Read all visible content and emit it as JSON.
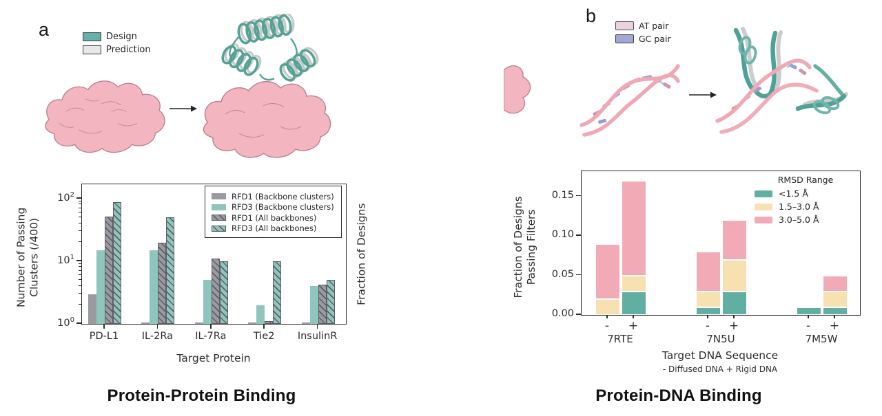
{
  "panel_a": {
    "label": "a",
    "top_legend": {
      "design": "Design",
      "prediction": "Prediction"
    },
    "caption": "Protein-Protein Binding",
    "colors": {
      "design_swatch": "#63b1a8",
      "prediction_swatch": "#e8e8e8"
    }
  },
  "panel_b": {
    "label": "b",
    "top_legend": {
      "at_pair": "AT pair",
      "gc_pair": "GC pair"
    },
    "caption": "Protein-DNA Binding",
    "colors": {
      "at_swatch": "#ecd2dc",
      "gc_swatch": "#a3a7d1"
    }
  },
  "chart_data": [
    {
      "id": "protein_protein_chart",
      "type": "bar",
      "yscale": "log",
      "xlabel": "Target Protein",
      "ylabel": "Number of Passing Clusters (/400)",
      "ylabel_lines": [
        "Number of Passing",
        "Clusters (/400)"
      ],
      "ylabel_right": "Fraction of Designs",
      "categories": [
        "PD-L1",
        "IL-2Ra",
        "IL-7Ra",
        "Tie2",
        "InsulinR"
      ],
      "yticks_exp": [
        0,
        1,
        2
      ],
      "ylim": [
        1,
        170
      ],
      "legend_position": "upper right",
      "series": [
        {
          "name": "RFD1 (Backbone clusters)",
          "style": "gray-solid",
          "color": "#9a9aa1",
          "hatch": false,
          "values": [
            3,
            1.05,
            1.05,
            1.05,
            1.05
          ]
        },
        {
          "name": "RFD3 (Backbone clusters)",
          "style": "teal-solid",
          "color": "#8ec6bd",
          "hatch": false,
          "values": [
            15,
            15,
            5,
            2,
            4
          ]
        },
        {
          "name": "RFD1 (All backbones)",
          "style": "gray-hatch",
          "color": "#9a9aa1",
          "hatch": true,
          "values": [
            52,
            20,
            11,
            1.1,
            4.2
          ]
        },
        {
          "name": "RFD3 (All backbones)",
          "style": "teal-hatch",
          "color": "#8ec6bd",
          "hatch": true,
          "values": [
            88,
            50,
            10,
            10,
            5
          ]
        }
      ]
    },
    {
      "id": "protein_dna_chart",
      "type": "stacked-bar",
      "yscale": "linear",
      "xlabel": "Target DNA Sequence",
      "xlabel_note": "- Diffused DNA + Rigid DNA",
      "ylabel": "Fraction of Designs Passing Filters",
      "ylabel_lines": [
        "Fraction of Designs",
        "Passing Filters"
      ],
      "legend_title": "RMSD Range",
      "legend_position": "upper right",
      "categories": [
        "7RTE",
        "7N5U",
        "7M5W"
      ],
      "bar_labels": [
        "-",
        "+"
      ],
      "yticks": [
        0.0,
        0.05,
        0.1,
        0.15
      ],
      "ylim": [
        0,
        0.182
      ],
      "series": [
        {
          "name": "<1.5 Å",
          "color": "#61aea3",
          "values": [
            [
              0,
              0.03
            ],
            [
              0.01,
              0.03
            ],
            [
              0.01,
              0.01
            ]
          ]
        },
        {
          "name": "1.5–3.0 Å",
          "color": "#f8e1b0",
          "values": [
            [
              0.02,
              0.02
            ],
            [
              0.02,
              0.04
            ],
            [
              0,
              0.02
            ]
          ]
        },
        {
          "name": "3.0–5.0 Å",
          "color": "#f2abb6",
          "values": [
            [
              0.07,
              0.12
            ],
            [
              0.05,
              0.05
            ],
            [
              0,
              0.02
            ]
          ]
        }
      ],
      "totals": {
        "7RTE": [
          0.09,
          0.17
        ],
        "7N5U": [
          0.08,
          0.12
        ],
        "7M5W": [
          0.01,
          0.05
        ]
      }
    }
  ]
}
